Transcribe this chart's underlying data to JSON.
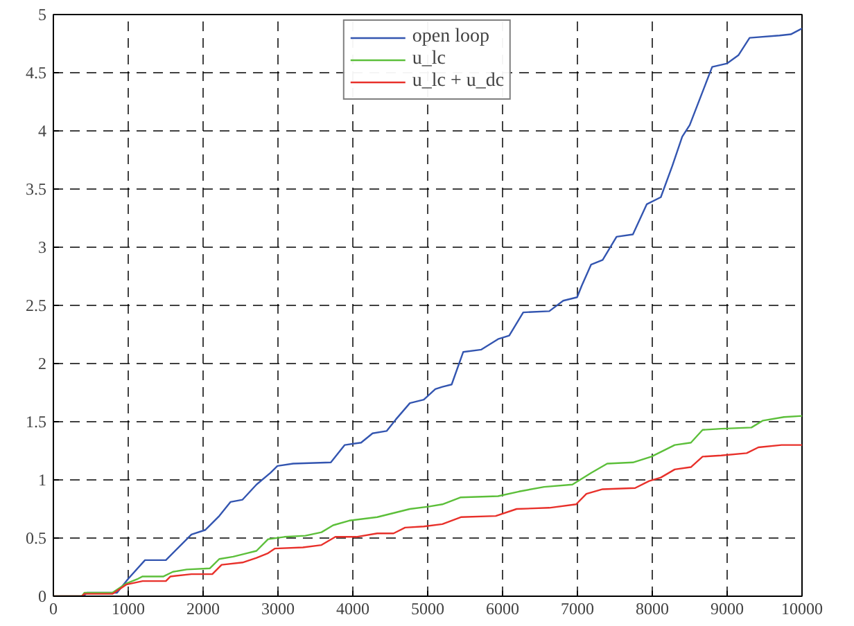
{
  "chart_data": {
    "type": "line",
    "xlim": [
      0,
      10000
    ],
    "ylim": [
      0,
      5
    ],
    "xticks": [
      0,
      1000,
      2000,
      3000,
      4000,
      5000,
      6000,
      7000,
      8000,
      9000,
      10000
    ],
    "yticks": [
      0,
      0.5,
      1,
      1.5,
      2,
      2.5,
      3,
      3.5,
      4,
      4.5,
      5
    ],
    "grid": true,
    "legend": "top",
    "line_style": "solid",
    "series": [
      {
        "name": "open loop",
        "color": "#3355b0",
        "x": [
          0,
          400,
          450,
          850,
          1000,
          1224,
          1503,
          1657,
          1844,
          2030,
          2216,
          2365,
          2527,
          2713,
          2899,
          2993,
          3203,
          3706,
          3892,
          4110,
          4264,
          4451,
          4575,
          4762,
          4948,
          5102,
          5196,
          5320,
          5475,
          5717,
          5940,
          6089,
          6276,
          6624,
          6810,
          6996,
          7058,
          7182,
          7337,
          7523,
          7741,
          7927,
          8114,
          8268,
          8400,
          8500,
          8650,
          8800,
          9000,
          9150,
          9300,
          9700,
          9850,
          10000
        ],
        "values": [
          0,
          0,
          0.03,
          0.03,
          0.15,
          0.31,
          0.31,
          0.41,
          0.53,
          0.57,
          0.69,
          0.81,
          0.83,
          0.96,
          1.06,
          1.12,
          1.14,
          1.15,
          1.3,
          1.32,
          1.4,
          1.42,
          1.52,
          1.66,
          1.69,
          1.78,
          1.8,
          1.82,
          2.1,
          2.12,
          2.21,
          2.24,
          2.44,
          2.45,
          2.54,
          2.57,
          2.67,
          2.85,
          2.89,
          3.09,
          3.11,
          3.37,
          3.43,
          3.7,
          3.95,
          4.05,
          4.3,
          4.55,
          4.58,
          4.65,
          4.8,
          4.82,
          4.83,
          4.88
        ]
      },
      {
        "name": "u_lc",
        "color": "#5cbf3a",
        "x": [
          0,
          380,
          415,
          788,
          974,
          1130,
          1192,
          1471,
          1596,
          1782,
          2091,
          2216,
          2402,
          2588,
          2713,
          2868,
          3086,
          3365,
          3581,
          3737,
          3953,
          4326,
          4512,
          4762,
          5009,
          5196,
          5443,
          5940,
          6220,
          6555,
          6933,
          7182,
          7398,
          7741,
          7989,
          8300,
          8516,
          8672,
          8920,
          9324,
          9479,
          9758,
          10000
        ],
        "values": [
          0,
          0,
          0.03,
          0.03,
          0.11,
          0.15,
          0.17,
          0.17,
          0.21,
          0.23,
          0.24,
          0.32,
          0.34,
          0.37,
          0.39,
          0.49,
          0.51,
          0.52,
          0.55,
          0.61,
          0.65,
          0.68,
          0.71,
          0.75,
          0.77,
          0.79,
          0.85,
          0.86,
          0.9,
          0.94,
          0.96,
          1.06,
          1.14,
          1.15,
          1.2,
          1.3,
          1.32,
          1.43,
          1.44,
          1.45,
          1.51,
          1.54,
          1.55
        ]
      },
      {
        "name": "u_lc + u_dc",
        "color": "#e8302a",
        "x": [
          0,
          380,
          415,
          788,
          974,
          1192,
          1503,
          1564,
          1844,
          2123,
          2247,
          2527,
          2713,
          2868,
          2961,
          3333,
          3581,
          3767,
          4047,
          4326,
          4544,
          4698,
          4948,
          5196,
          5443,
          5909,
          6188,
          6624,
          6983,
          7120,
          7337,
          7771,
          7958,
          8114,
          8300,
          8516,
          8672,
          8920,
          9261,
          9417,
          9727,
          10000
        ],
        "values": [
          0,
          0,
          0.02,
          0.02,
          0.1,
          0.13,
          0.13,
          0.17,
          0.19,
          0.19,
          0.27,
          0.29,
          0.33,
          0.37,
          0.41,
          0.42,
          0.44,
          0.51,
          0.51,
          0.54,
          0.54,
          0.59,
          0.6,
          0.62,
          0.68,
          0.69,
          0.75,
          0.76,
          0.79,
          0.88,
          0.92,
          0.93,
          0.99,
          1.02,
          1.09,
          1.11,
          1.2,
          1.21,
          1.23,
          1.28,
          1.3,
          1.3
        ]
      }
    ]
  }
}
